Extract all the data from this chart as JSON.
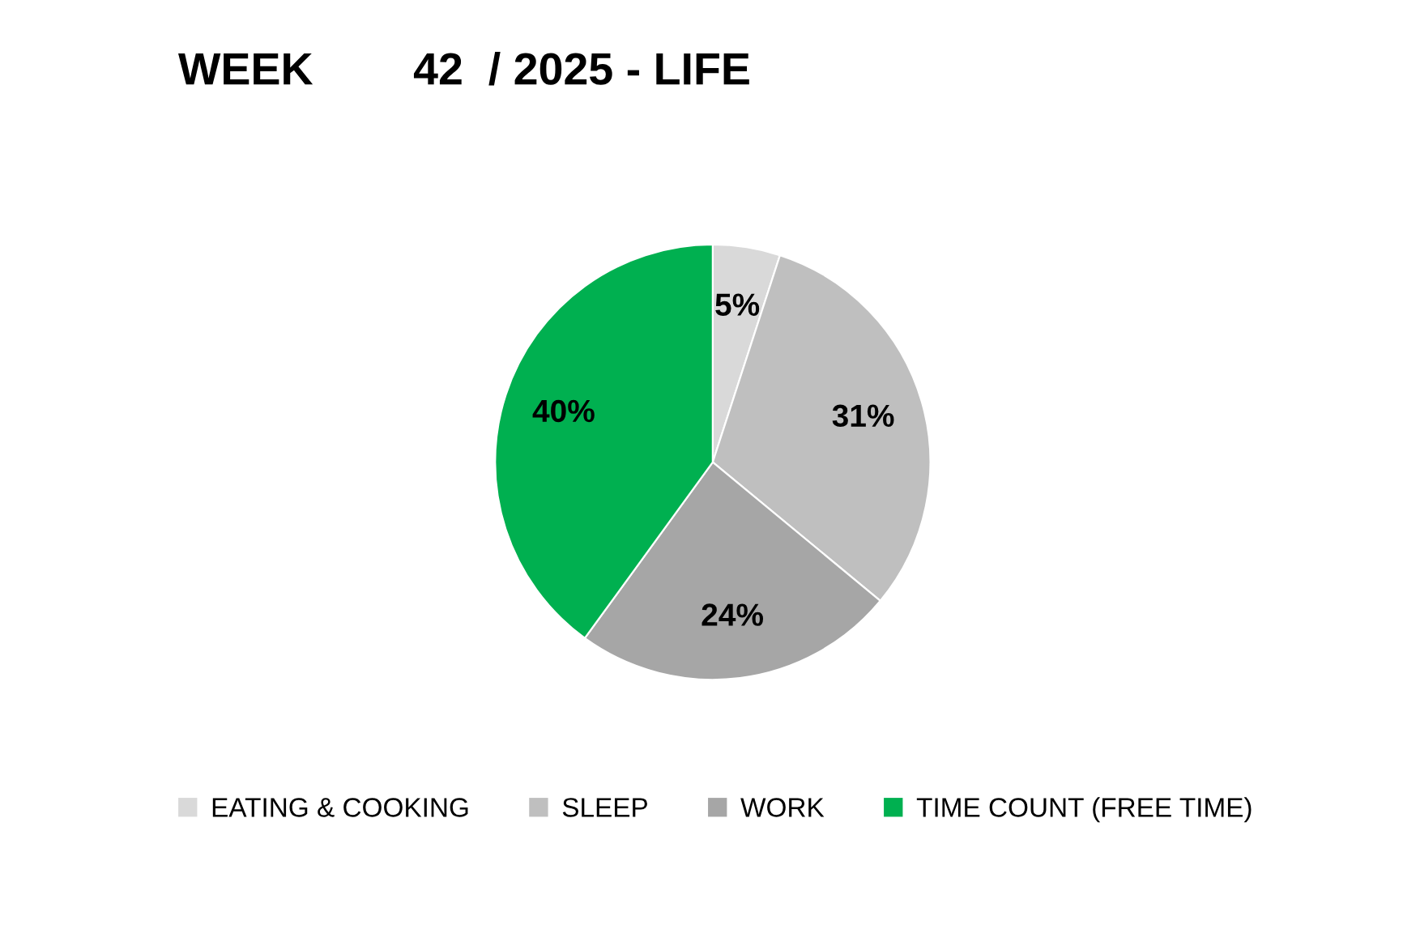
{
  "chart_data": {
    "type": "pie",
    "title": "WEEK        42  / 2025 - LIFE",
    "categories": [
      "EATING & COOKING",
      "SLEEP",
      "WORK",
      "TIME COUNT (FREE TIME)"
    ],
    "values": [
      5,
      31,
      24,
      40
    ],
    "colors": [
      "#d9d9d9",
      "#bfbfbf",
      "#a6a6a6",
      "#00b050"
    ],
    "value_labels": [
      "5%",
      "31%",
      "24%",
      "40%"
    ],
    "legend": "bottom"
  }
}
